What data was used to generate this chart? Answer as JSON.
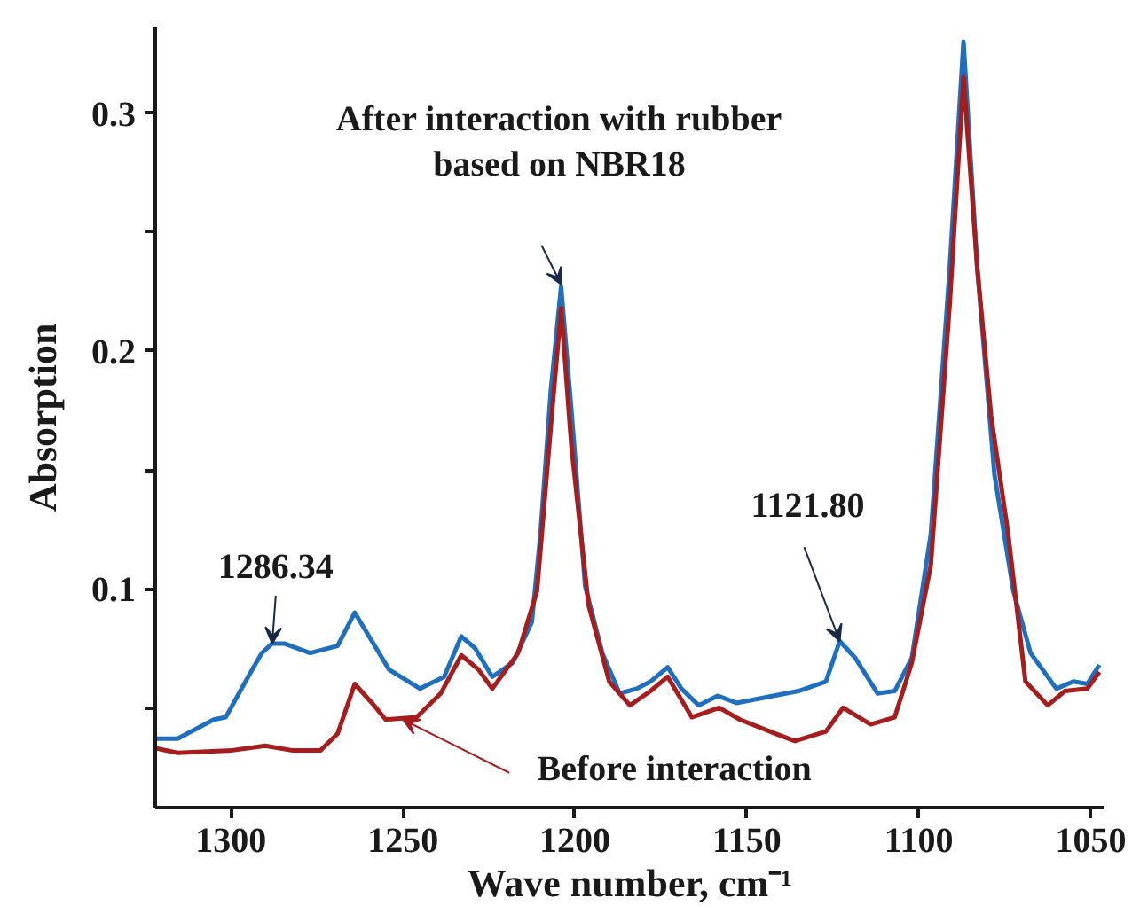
{
  "chart_data": {
    "type": "line",
    "xlabel": "Wave number, cm⁻¹",
    "ylabel": "Absorption",
    "xlim": [
      1322,
      1046
    ],
    "ylim": [
      0.008,
      0.336
    ],
    "xticks": [
      1300,
      1250,
      1200,
      1150,
      1100,
      1050
    ],
    "yticks": [
      {
        "value": 0.05,
        "label": null
      },
      0.1,
      {
        "value": 0.15,
        "label": null
      },
      0.2,
      {
        "value": 0.25,
        "label": null
      },
      0.3
    ],
    "grid": false,
    "line_style": "solid",
    "series": [
      {
        "color": "#1f6fbf",
        "x": [
          1322,
          1315.5,
          1305,
          1301.5,
          1295,
          1291,
          1288,
          1284.5,
          1277,
          1269,
          1264,
          1259,
          1254,
          1245,
          1238,
          1233,
          1229,
          1224,
          1218,
          1212.5,
          1210,
          1207,
          1204,
          1201,
          1197,
          1192,
          1187,
          1182,
          1178,
          1173,
          1169,
          1164,
          1158.5,
          1153,
          1135,
          1127,
          1123,
          1118.5,
          1112,
          1107,
          1102,
          1096.5,
          1091,
          1087,
          1083,
          1078,
          1072.5,
          1067.5,
          1060,
          1055,
          1051,
          1047.5
        ],
        "values": [
          0.037,
          0.037,
          0.045,
          0.046,
          0.063,
          0.073,
          0.077,
          0.077,
          0.073,
          0.076,
          0.09,
          0.078,
          0.066,
          0.058,
          0.063,
          0.08,
          0.075,
          0.063,
          0.069,
          0.086,
          0.123,
          0.183,
          0.227,
          0.175,
          0.101,
          0.073,
          0.056,
          0.058,
          0.061,
          0.067,
          0.058,
          0.051,
          0.055,
          0.052,
          0.057,
          0.061,
          0.078,
          0.071,
          0.056,
          0.057,
          0.071,
          0.123,
          0.235,
          0.33,
          0.235,
          0.148,
          0.099,
          0.073,
          0.058,
          0.061,
          0.06,
          0.068
        ]
      },
      {
        "color": "#a51d1d",
        "x": [
          1322,
          1315.5,
          1300,
          1290,
          1282,
          1274,
          1269,
          1264,
          1259,
          1255,
          1246,
          1239,
          1233,
          1228,
          1224,
          1216.5,
          1211,
          1207,
          1204,
          1201,
          1196,
          1190,
          1184,
          1178,
          1173,
          1166,
          1158,
          1152,
          1141.5,
          1136,
          1127,
          1122,
          1114,
          1107,
          1102,
          1096.5,
          1091,
          1087,
          1083,
          1079,
          1074,
          1069,
          1062.5,
          1057.5,
          1051,
          1047.5
        ],
        "values": [
          0.033,
          0.031,
          0.032,
          0.034,
          0.032,
          0.032,
          0.039,
          0.06,
          0.052,
          0.045,
          0.046,
          0.056,
          0.072,
          0.066,
          0.058,
          0.073,
          0.099,
          0.168,
          0.218,
          0.16,
          0.093,
          0.061,
          0.051,
          0.057,
          0.063,
          0.046,
          0.05,
          0.045,
          0.039,
          0.036,
          0.04,
          0.05,
          0.043,
          0.046,
          0.069,
          0.11,
          0.22,
          0.315,
          0.235,
          0.173,
          0.123,
          0.061,
          0.051,
          0.057,
          0.058,
          0.065
        ]
      }
    ],
    "annotations": [
      {
        "text": "After interaction with rubber\nbased on NBR18",
        "x": 1204,
        "y": 0.228
      },
      {
        "text": "1286.34",
        "x": 1288,
        "y": 0.077
      },
      {
        "text": "1121.80",
        "x": 1123,
        "y": 0.078
      },
      {
        "text": "Before interaction",
        "x": 1250,
        "y": 0.045
      }
    ]
  }
}
